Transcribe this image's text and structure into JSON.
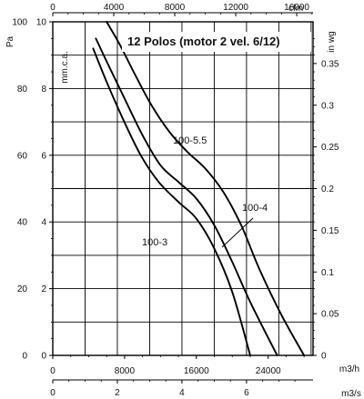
{
  "chart_data": {
    "type": "line",
    "title": "12 Polos (motor 2 vel. 6/12)",
    "axes": {
      "x_m3h": {
        "label": "m3/h",
        "range": [
          0,
          29000
        ],
        "ticks": [
          0,
          8000,
          16000,
          24000
        ],
        "tick_labels": [
          "0",
          "8000",
          "16000",
          "24000"
        ]
      },
      "x_m3s": {
        "label": "m3/s",
        "range": [
          0,
          8.06
        ],
        "ticks": [
          0,
          2,
          4,
          6
        ],
        "tick_labels": [
          "0",
          "2",
          "4",
          "6"
        ]
      },
      "x_cfm": {
        "label": "cfm",
        "range": [
          0,
          17070
        ],
        "ticks": [
          0,
          4000,
          8000,
          12000,
          16000
        ],
        "tick_labels": [
          "0",
          "4000",
          "8000",
          "12000",
          "16000"
        ]
      },
      "y_pa": {
        "label": "Pa",
        "range": [
          0,
          100
        ],
        "ticks": [
          0,
          20,
          40,
          60,
          80,
          100
        ],
        "tick_labels": [
          "0",
          "20",
          "40",
          "60",
          "80",
          "100"
        ]
      },
      "y_mmca": {
        "label": "mm.c.a.",
        "range": [
          0,
          10
        ],
        "ticks": [
          0,
          2,
          4,
          6,
          8,
          10
        ],
        "tick_labels": [
          "0",
          "2",
          "4",
          "6",
          "8",
          "10"
        ]
      },
      "y_inwg": {
        "label": "in wg",
        "range": [
          0,
          0.4
        ],
        "ticks": [
          0,
          0.05,
          0.1,
          0.15,
          0.2,
          0.25,
          0.3,
          0.35
        ],
        "tick_labels": [
          "0",
          "0.05",
          "0.1",
          "0.15",
          "0.2",
          "0.25",
          "0.3",
          "0.35"
        ]
      }
    },
    "grid": true,
    "series": [
      {
        "name": "100-5.5",
        "x": [
          6000,
          7500,
          9200,
          11000,
          13000,
          15000,
          17000,
          19000,
          21000,
          23000,
          25500,
          28000
        ],
        "y": [
          100,
          93,
          84,
          75,
          67,
          61,
          56,
          49,
          39,
          26,
          12,
          0
        ]
      },
      {
        "name": "100-4",
        "x": [
          4800,
          6200,
          8000,
          10000,
          12000,
          14000,
          16000,
          18000,
          20000,
          22000,
          25000
        ],
        "y": [
          95,
          87,
          77,
          66,
          57,
          52,
          47,
          39,
          28,
          16,
          0
        ]
      },
      {
        "name": "100-3",
        "x": [
          4500,
          6000,
          7800,
          9800,
          11800,
          14000,
          16000,
          18000,
          20000,
          22000
        ],
        "y": [
          92,
          82,
          71,
          60,
          52,
          46,
          41,
          32,
          19,
          0
        ]
      }
    ]
  }
}
